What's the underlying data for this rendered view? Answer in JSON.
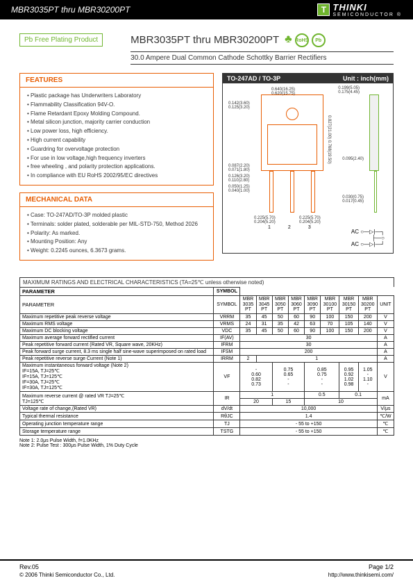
{
  "header": {
    "range": "MBR3035PT thru MBR30200PT",
    "brand": "THINKI",
    "brand_sub": "SEMICONDUCTOR",
    "reg": "®"
  },
  "pbfree": "Pb Free Plating Product",
  "title": "MBR3035PT thru MBR30200PT",
  "subtitle": "30.0 Ampere Dual Common Cathode Schottky Barrier Rectifiers",
  "rohs": "RoHS",
  "pb": "Pb",
  "features": {
    "heading": "FEATURES",
    "items": [
      "Plastic package has Underwriters Laboratory",
      "Flammability Classification 94V-O.",
      "Flame Retardant Epoxy Molding Compound.",
      "Metal silicon junction, majority carrier conduction",
      "Low power loss, high efficiency.",
      "High current capability",
      "Guardring for overvoltage protection",
      "For use in low voltage,high frequency inverters",
      "free wheeling , and polarity protection applications.",
      "In compliance with EU RoHS 2002/95/EC directives"
    ]
  },
  "mech": {
    "heading": "MECHANICAL DATA",
    "items": [
      "Case: TO-247AD/TO-3P molded plastic",
      "Terminals: solder plated, solderable per MIL-STD-750, Method 2026",
      "Polarity: As marked.",
      "Mounting Position: Any",
      "Weight: 0.2245 ounces, 6.3673 grams."
    ]
  },
  "diagram": {
    "heading": "TO-247AD / TO-3P",
    "unit": "Unit : inch(mm)",
    "dims": {
      "d1": "0.640(16.25)",
      "d1b": "0.620(15.75)",
      "d2": "0.142(3.60)",
      "d2b": "0.125(3.20)",
      "h1": "0.827(21.00)",
      "h1b": "0.768(19.50)",
      "w1": "0.199(5.05)",
      "w1b": "0.175(4.45)",
      "s1": "0.087(2.20)",
      "s1b": "0.071(1.80)",
      "p1": "0.126(3.20)",
      "p1b": "0.110(2.80)",
      "p2": "0.050(1.25)",
      "p2b": "0.040(1.00)",
      "l1": "0.225(5.70)",
      "l1b": "0.204(5.20)",
      "t1": "0.095(2.40)",
      "t2": "0.030(0.75)",
      "t2b": "0.017(0.45)",
      "h2": "0.591(14.00)",
      "h2b": "0.380(9.65)"
    },
    "pins": [
      "1",
      "2",
      "3"
    ],
    "ac_labels": [
      "AC",
      "AC"
    ],
    "circuit_out": "○"
  },
  "table": {
    "caption": "MAXIMUM RATINGS AND ELECTRICAL CHARACTERISTICS (TA=25℃ unless otherwise noted)",
    "head_param": "PARAMETER",
    "head_symbol": "SYMBOL",
    "head_unit": "UNIT",
    "models": [
      "MBR 3035 PT",
      "MBR 3045 PT",
      "MBR 3050 PT",
      "MBR 3060 PT",
      "MBR 3090 PT",
      "MBR 30100 PT",
      "MBR 30150 PT",
      "MBR 30200 PT"
    ],
    "rows": [
      {
        "p": "Maximum repetitive peak reverse voltage",
        "s": "VRRM",
        "v": [
          "35",
          "45",
          "50",
          "60",
          "90",
          "100",
          "150",
          "200"
        ],
        "u": "V"
      },
      {
        "p": "Maximum RMS voltage",
        "s": "VRMS",
        "v": [
          "24",
          "31",
          "35",
          "42",
          "63",
          "70",
          "105",
          "140"
        ],
        "u": "V"
      },
      {
        "p": "Maximum DC blocking voltage",
        "s": "VDC",
        "v": [
          "35",
          "45",
          "50",
          "60",
          "90",
          "100",
          "150",
          "200"
        ],
        "u": "V"
      },
      {
        "p": "Maximum average forward rectified current",
        "s": "IF(AV)",
        "span": "30",
        "u": "A"
      },
      {
        "p": "Peak repetitive forward current (Rated VR, Square wave, 20KHz)",
        "s": "IFRM",
        "span": "30",
        "u": "A"
      },
      {
        "p": "Peak forward surge current, 8.3 ms single half sine-wave superimposed on rated load",
        "s": "IFSM",
        "span": "200",
        "u": "A"
      }
    ],
    "irrm": {
      "p": "Peak repetitive reverse surge Current (Note 1)",
      "s": "IRRM",
      "v1": "2",
      "v2": "1",
      "u": "A"
    },
    "vf": {
      "p": "Maximum instantaneous forward voltage (Note 2)",
      "conds": [
        "IF=15A, TJ=25℃",
        "IF=15A, TJ=125℃",
        "IF=30A, TJ=25℃",
        "IF=30A, TJ=125℃"
      ],
      "s": "VF",
      "col1": [
        "-",
        "0.60",
        "0.82",
        "0.73"
      ],
      "col2": [
        "0.75",
        "0.65",
        "-",
        "-"
      ],
      "col3": [
        "0.85",
        "0.75",
        "-",
        "-"
      ],
      "col4": [
        "0.95",
        "0.92",
        "1.02",
        "0.98"
      ],
      "col5": [
        "1.05",
        "-",
        "1.10",
        "-"
      ],
      "u": "V"
    },
    "ir": {
      "p": "Maximum reverse current @ rated VR   TJ=25℃",
      "p2": "TJ=125℃",
      "s": "IR",
      "r1": [
        "1",
        "0.5",
        "0.1"
      ],
      "r2": [
        "20",
        "15",
        "10"
      ],
      "u": "mA"
    },
    "dvdt": {
      "p": "Voltage rate of change,(Rated VR)",
      "s": "dV/dt",
      "v": "10,000",
      "u": "V/μs"
    },
    "rth": {
      "p": "Typical thermal resistance",
      "s": "RθJC",
      "v": "1.4",
      "u": "℃/W"
    },
    "tj": {
      "p": "Operating junction temperature range",
      "s": "TJ",
      "v": "- 55 to +150",
      "u": "℃"
    },
    "tstg": {
      "p": "Storage temperature range",
      "s": "TSTG",
      "v": "- 55 to +150",
      "u": "℃"
    }
  },
  "notes": {
    "n1": "Note 1: 2.0μs Pulse Width, f=1.0KHz",
    "n2": "Note 2: Pulse Test : 300μs Pulse Width, 1% Duty Cycle"
  },
  "footer": {
    "rev": "Rev.05",
    "page": "Page 1/2",
    "copyright": "© 2006 Thinki Semiconductor Co., Ltd.",
    "url": "http://www.thinkisemi.com/"
  }
}
